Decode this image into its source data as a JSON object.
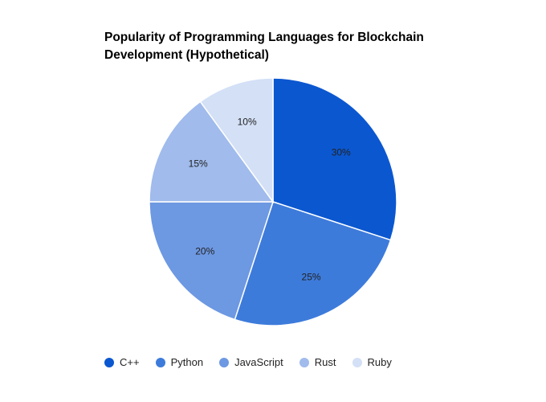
{
  "chart_data": {
    "type": "pie",
    "title_lines": [
      "Popularity of Programming Languages for Blockchain",
      "Development (Hypothetical)"
    ],
    "categories": [
      "C++",
      "Python",
      "JavaScript",
      "Rust",
      "Ruby"
    ],
    "values": [
      30,
      25,
      20,
      15,
      10
    ],
    "labels": [
      "30%",
      "25%",
      "20%",
      "15%",
      "10%"
    ],
    "colors": [
      "#0b57d0",
      "#3d7bdb",
      "#6d98e2",
      "#a0bbec",
      "#d3e0f6"
    ],
    "start_angle_deg": 0,
    "direction": "clockwise",
    "legend_position": "bottom"
  }
}
